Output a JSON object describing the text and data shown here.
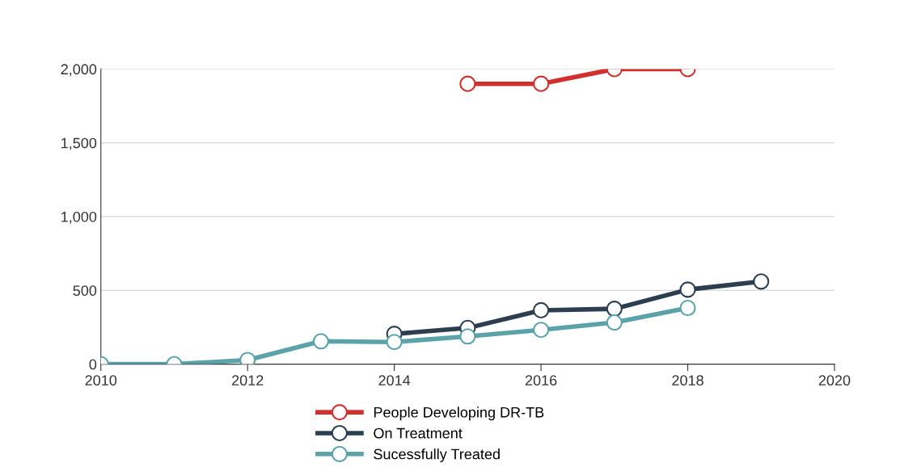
{
  "chart_data": {
    "type": "line",
    "x": [
      2010,
      2011,
      2012,
      2013,
      2014,
      2015,
      2016,
      2017,
      2018,
      2019
    ],
    "series": [
      {
        "name": "People Developing DR-TB",
        "color": "#d0312d",
        "values": [
          null,
          null,
          null,
          null,
          null,
          1900,
          1900,
          2000,
          2000,
          null
        ]
      },
      {
        "name": "On Treatment",
        "color": "#2c3e50",
        "values": [
          null,
          null,
          null,
          null,
          205,
          245,
          365,
          375,
          505,
          560
        ]
      },
      {
        "name": "Sucessfully Treated",
        "color": "#5ba3a8",
        "values": [
          0,
          0,
          28,
          155,
          150,
          188,
          232,
          282,
          381,
          null
        ]
      }
    ],
    "xlim": [
      2010,
      2020
    ],
    "xticks": [
      2010,
      2012,
      2014,
      2016,
      2018,
      2020
    ],
    "ylim": [
      0,
      2000
    ],
    "yticks": [
      0,
      500,
      {
        "value": 1000,
        "label": "1,000"
      },
      {
        "value": 1500,
        "label": "1,500"
      },
      {
        "value": 2000,
        "label": "2,000"
      }
    ],
    "grid": "y",
    "legend": "bottom",
    "marker": "circle",
    "line_style": "solid"
  }
}
